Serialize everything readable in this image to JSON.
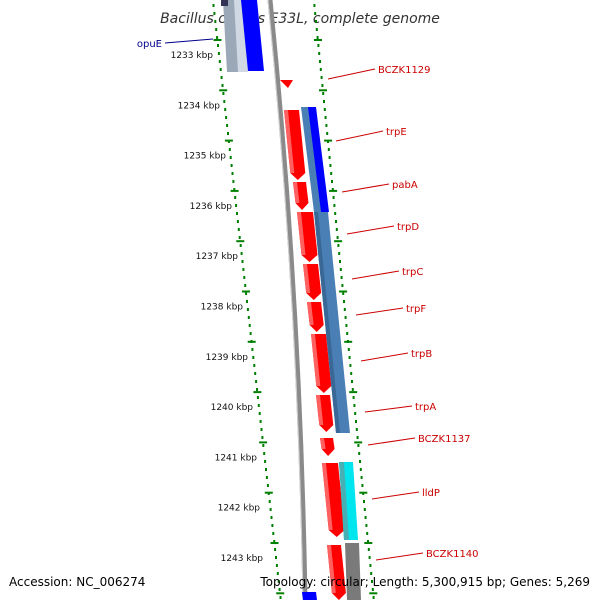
{
  "title": "Bacillus cereus E33L, complete genome",
  "accession": "Accession: NC_006274",
  "summary": "Topology: circular; Length: 5,300,915 bp; Genes: 5,269",
  "colors": {
    "plus_strand_gene": "#ff0000",
    "minus_strand_gene": "#0000ff",
    "orf_block": "#4a7fb5",
    "cyan_block": "#00e5ee",
    "gray_block": "#808080",
    "tick": "#008000",
    "plus_label": "#cc0000",
    "minus_label": "#00008b",
    "backbone": "#888888"
  },
  "kbp_ticks": [
    "1233 kbp",
    "1234 kbp",
    "1235 kbp",
    "1236 kbp",
    "1237 kbp",
    "1238 kbp",
    "1239 kbp",
    "1240 kbp",
    "1241 kbp",
    "1242 kbp",
    "1243 kbp"
  ],
  "gene_labels": [
    {
      "name": "opuE",
      "strand": "minus"
    },
    {
      "name": "BCZK1129",
      "strand": "plus"
    },
    {
      "name": "trpE",
      "strand": "plus"
    },
    {
      "name": "pabA",
      "strand": "plus"
    },
    {
      "name": "trpD",
      "strand": "plus"
    },
    {
      "name": "trpC",
      "strand": "plus"
    },
    {
      "name": "trpF",
      "strand": "plus"
    },
    {
      "name": "trpB",
      "strand": "plus"
    },
    {
      "name": "trpA",
      "strand": "plus"
    },
    {
      "name": "BCZK1137",
      "strand": "plus"
    },
    {
      "name": "lldP",
      "strand": "plus"
    },
    {
      "name": "BCZK1140",
      "strand": "plus"
    }
  ]
}
